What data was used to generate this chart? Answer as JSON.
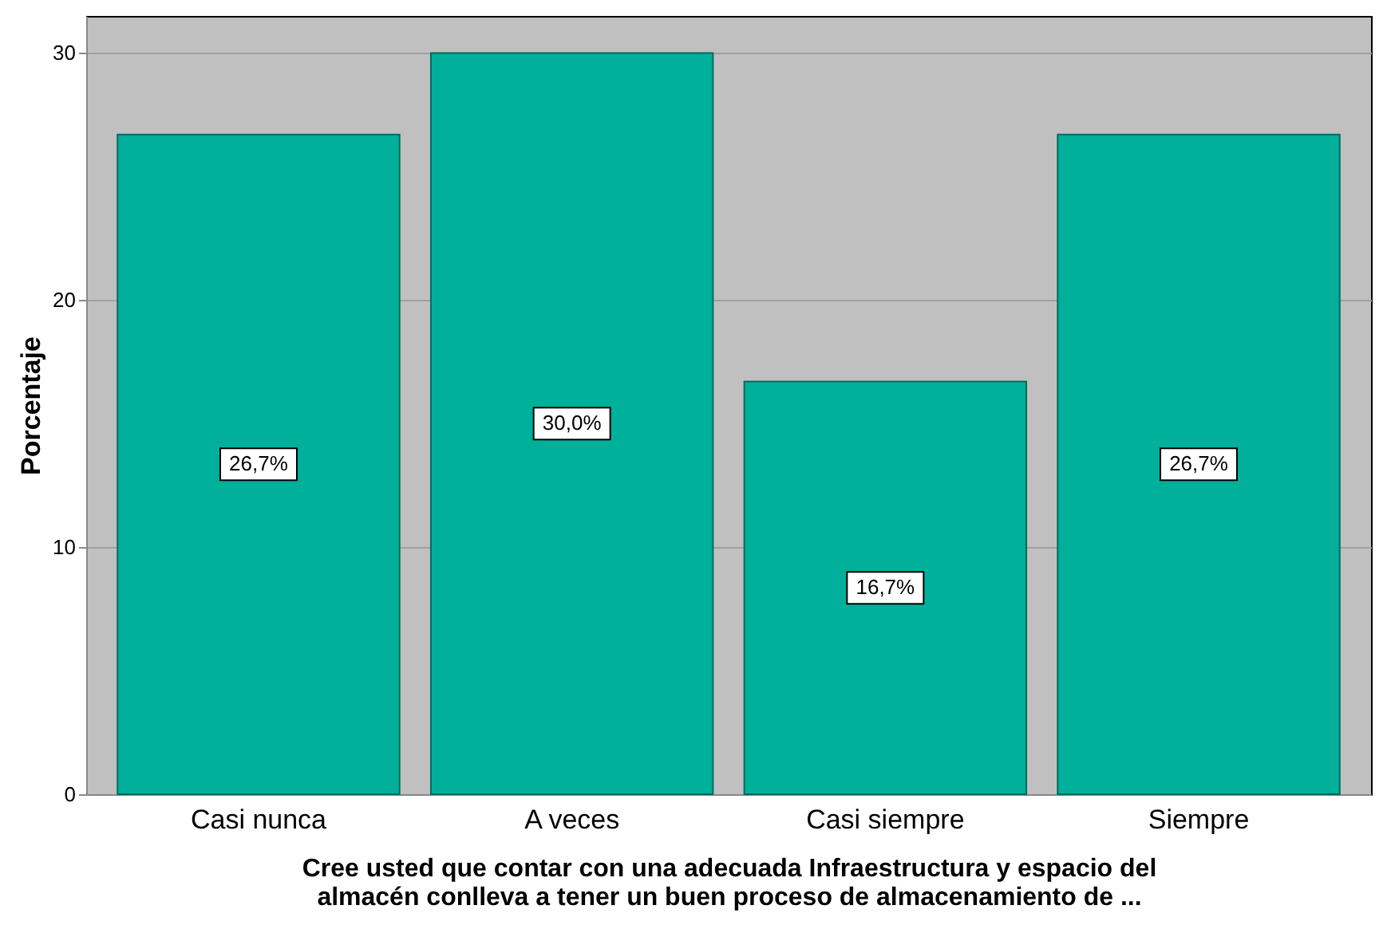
{
  "chart_data": {
    "type": "bar",
    "categories": [
      "Casi nunca",
      "A veces",
      "Casi siempre",
      "Siempre"
    ],
    "values": [
      26.7,
      30.0,
      16.7,
      26.7
    ],
    "value_labels": [
      "26,7%",
      "30,0%",
      "16,7%",
      "26,7%"
    ],
    "color": "#00b09a",
    "ylabel": "Porcentaje",
    "xlabel": "Cree usted que contar con una adecuada Infraestructura y espacio del almacén conlleva a tener un buen proceso de almacenamiento de ...",
    "ylim": [
      0,
      31.5
    ],
    "yticks": [
      0,
      10,
      20,
      30
    ],
    "grid": "y"
  }
}
